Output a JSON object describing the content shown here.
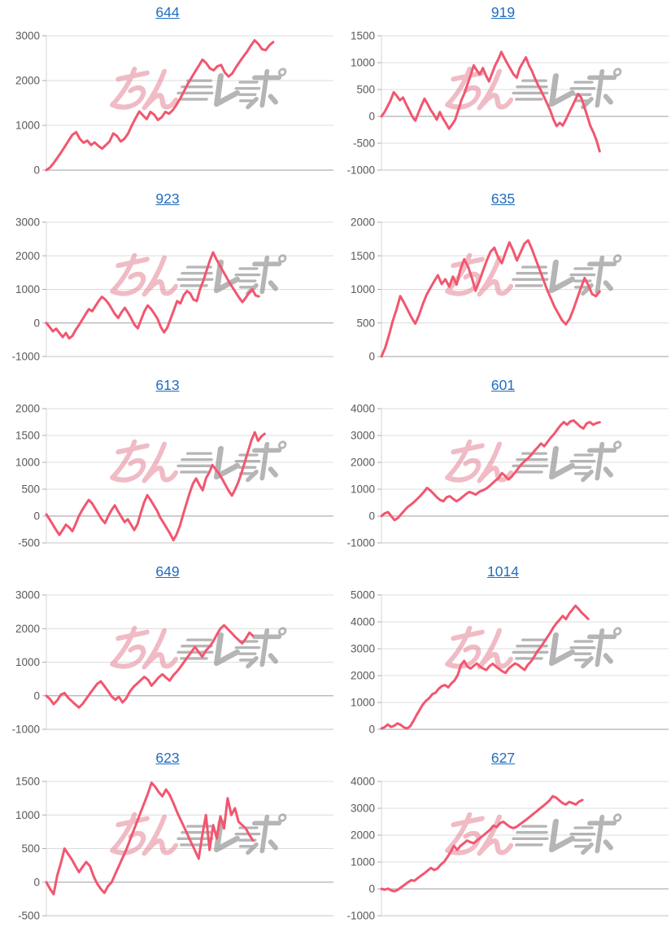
{
  "styles": {
    "series_color": "#f2566f",
    "title_link_color": "#1f6dc1",
    "grid_color": "#dcdcdc",
    "zero_line_color": "#b0b0b0",
    "bottom_line_color": "#c6c6c6",
    "axis_line_color": "#d4d4d4",
    "tick_color": "#ababab",
    "axis_label_color": "#595959",
    "watermark_pink": "#e78fa0",
    "watermark_gray": "#8f8f8f"
  },
  "watermark": {
    "text": "みんレポ",
    "part_pink": "みん",
    "part_gray": "レポ"
  },
  "chart_data": [
    {
      "type": "line",
      "title": "644",
      "ylim": [
        0,
        3000
      ],
      "ytick_step": 1000,
      "yticks": [
        0,
        1000,
        2000,
        3000
      ],
      "x_span_frac": 0.79,
      "values": [
        0,
        60,
        160,
        280,
        400,
        530,
        660,
        790,
        850,
        700,
        610,
        660,
        560,
        620,
        540,
        480,
        560,
        640,
        820,
        760,
        640,
        700,
        820,
        1000,
        1160,
        1310,
        1220,
        1140,
        1300,
        1240,
        1120,
        1180,
        1300,
        1260,
        1340,
        1460,
        1600,
        1760,
        1920,
        2060,
        2200,
        2330,
        2470,
        2390,
        2270,
        2230,
        2320,
        2350,
        2180,
        2090,
        2160,
        2300,
        2420,
        2540,
        2650,
        2780,
        2900,
        2820,
        2700,
        2680,
        2790,
        2860
      ]
    },
    {
      "type": "line",
      "title": "919",
      "ylim": [
        -1000,
        1500
      ],
      "ytick_step": 500,
      "yticks": [
        -1000,
        -500,
        0,
        500,
        1000,
        1500
      ],
      "x_span_frac": 0.76,
      "values": [
        0,
        80,
        190,
        300,
        450,
        380,
        300,
        350,
        230,
        120,
        0,
        -80,
        60,
        200,
        330,
        230,
        120,
        40,
        -60,
        80,
        -40,
        -130,
        -230,
        -150,
        -60,
        120,
        300,
        430,
        600,
        760,
        950,
        860,
        780,
        900,
        760,
        650,
        800,
        950,
        1060,
        1200,
        1090,
        980,
        880,
        780,
        720,
        900,
        1000,
        1100,
        950,
        840,
        700,
        580,
        470,
        350,
        230,
        100,
        -60,
        -180,
        -120,
        -170,
        -60,
        60,
        180,
        300,
        420,
        350,
        180,
        0,
        -180,
        -300,
        -450,
        -650
      ]
    },
    {
      "type": "line",
      "title": "923",
      "ylim": [
        -1000,
        3000
      ],
      "ytick_step": 1000,
      "yticks": [
        -1000,
        0,
        1000,
        2000,
        3000
      ],
      "x_span_frac": 0.74,
      "values": [
        0,
        -120,
        -250,
        -170,
        -300,
        -420,
        -300,
        -460,
        -380,
        -200,
        -60,
        100,
        260,
        410,
        350,
        500,
        650,
        780,
        700,
        580,
        420,
        260,
        150,
        320,
        450,
        300,
        130,
        -60,
        -160,
        100,
        350,
        520,
        420,
        280,
        130,
        -120,
        -280,
        -140,
        120,
        380,
        650,
        580,
        820,
        950,
        880,
        700,
        650,
        1000,
        1250,
        1550,
        1850,
        2100,
        1900,
        1720,
        1550,
        1380,
        1200,
        1050,
        900,
        750,
        620,
        750,
        900,
        1000,
        820,
        790
      ]
    },
    {
      "type": "line",
      "title": "635",
      "ylim": [
        0,
        2000
      ],
      "ytick_step": 500,
      "yticks": [
        0,
        500,
        1000,
        1500,
        2000
      ],
      "x_span_frac": 0.76,
      "values": [
        0,
        130,
        320,
        530,
        700,
        900,
        800,
        690,
        580,
        490,
        620,
        780,
        920,
        1020,
        1120,
        1210,
        1080,
        1150,
        1040,
        1190,
        1070,
        1300,
        1450,
        1340,
        1180,
        980,
        1120,
        1280,
        1430,
        1560,
        1620,
        1480,
        1390,
        1550,
        1700,
        1580,
        1430,
        1550,
        1680,
        1730,
        1600,
        1450,
        1300,
        1150,
        1000,
        870,
        740,
        640,
        540,
        480,
        560,
        700,
        860,
        1020,
        1170,
        1060,
        930,
        900,
        970
      ]
    },
    {
      "type": "line",
      "title": "613",
      "ylim": [
        -500,
        2000
      ],
      "ytick_step": 500,
      "yticks": [
        -500,
        0,
        500,
        1000,
        1500,
        2000
      ],
      "x_span_frac": 0.76,
      "values": [
        30,
        -60,
        -160,
        -260,
        -350,
        -260,
        -160,
        -210,
        -280,
        -150,
        0,
        110,
        210,
        300,
        240,
        140,
        40,
        -60,
        -130,
        0,
        110,
        200,
        90,
        -10,
        -110,
        -60,
        -160,
        -260,
        -150,
        60,
        250,
        390,
        300,
        200,
        100,
        -30,
        -130,
        -230,
        -330,
        -450,
        -340,
        -180,
        30,
        230,
        430,
        600,
        700,
        580,
        480,
        700,
        810,
        950,
        870,
        790,
        690,
        580,
        470,
        380,
        500,
        640,
        820,
        1020,
        1220,
        1420,
        1560,
        1400,
        1480,
        1530
      ]
    },
    {
      "type": "line",
      "title": "601",
      "ylim": [
        -1000,
        4000
      ],
      "ytick_step": 1000,
      "yticks": [
        -1000,
        0,
        1000,
        2000,
        3000,
        4000
      ],
      "x_span_frac": 0.76,
      "values": [
        0,
        100,
        150,
        0,
        -150,
        -80,
        60,
        200,
        330,
        420,
        520,
        640,
        760,
        900,
        1050,
        950,
        830,
        700,
        600,
        550,
        700,
        740,
        640,
        550,
        620,
        720,
        820,
        900,
        850,
        800,
        900,
        950,
        1010,
        1100,
        1210,
        1320,
        1420,
        1600,
        1490,
        1360,
        1470,
        1620,
        1780,
        1930,
        2050,
        2150,
        2280,
        2430,
        2560,
        2700,
        2600,
        2760,
        2920,
        3050,
        3220,
        3380,
        3500,
        3400,
        3520,
        3560,
        3450,
        3330,
        3260,
        3450,
        3500,
        3400,
        3460,
        3490
      ]
    },
    {
      "type": "line",
      "title": "649",
      "ylim": [
        -1000,
        3000
      ],
      "ytick_step": 1000,
      "yticks": [
        -1000,
        0,
        1000,
        2000,
        3000
      ],
      "x_span_frac": 0.72,
      "values": [
        0,
        -100,
        -250,
        -140,
        30,
        80,
        -60,
        -160,
        -260,
        -350,
        -240,
        -90,
        60,
        210,
        350,
        430,
        290,
        140,
        -20,
        -120,
        -30,
        -200,
        -80,
        120,
        260,
        360,
        460,
        560,
        480,
        300,
        420,
        550,
        640,
        540,
        450,
        610,
        720,
        860,
        1010,
        1160,
        1310,
        1450,
        1300,
        1160,
        1350,
        1460,
        1620,
        1820,
        2000,
        2100,
        1990,
        1880,
        1760,
        1660,
        1560,
        1700,
        1880,
        1780
      ]
    },
    {
      "type": "line",
      "title": "1014",
      "ylim": [
        0,
        5000
      ],
      "ytick_step": 1000,
      "yticks": [
        0,
        1000,
        2000,
        3000,
        4000,
        5000
      ],
      "x_span_frac": 0.72,
      "values": [
        30,
        80,
        180,
        90,
        130,
        220,
        170,
        80,
        30,
        110,
        300,
        520,
        720,
        920,
        1060,
        1160,
        1310,
        1360,
        1510,
        1610,
        1650,
        1560,
        1710,
        1820,
        2020,
        2400,
        2550,
        2340,
        2260,
        2360,
        2450,
        2340,
        2260,
        2210,
        2350,
        2440,
        2340,
        2250,
        2160,
        2100,
        2260,
        2360,
        2450,
        2400,
        2300,
        2210,
        2400,
        2520,
        2700,
        2900,
        3050,
        3220,
        3400,
        3580,
        3780,
        3950,
        4080,
        4220,
        4100,
        4300,
        4450,
        4600,
        4480,
        4340,
        4230,
        4110
      ]
    },
    {
      "type": "line",
      "title": "623",
      "ylim": [
        -500,
        1500
      ],
      "ytick_step": 500,
      "yticks": [
        -500,
        0,
        500,
        1000,
        1500
      ],
      "x_span_frac": 0.72,
      "values": [
        0,
        -100,
        -180,
        100,
        280,
        500,
        420,
        340,
        240,
        150,
        230,
        300,
        240,
        90,
        -20,
        -100,
        -160,
        -60,
        0,
        120,
        240,
        360,
        480,
        620,
        760,
        900,
        1040,
        1180,
        1320,
        1480,
        1420,
        1340,
        1280,
        1380,
        1300,
        1180,
        1050,
        930,
        820,
        700,
        580,
        470,
        350,
        700,
        1000,
        480,
        850,
        650,
        980,
        800,
        1250,
        1000,
        1100,
        900,
        850,
        800,
        700,
        620
      ]
    },
    {
      "type": "line",
      "title": "627",
      "ylim": [
        -1000,
        4000
      ],
      "ytick_step": 1000,
      "yticks": [
        -1000,
        0,
        1000,
        2000,
        3000,
        4000
      ],
      "x_span_frac": 0.7,
      "values": [
        0,
        -30,
        10,
        -60,
        -90,
        -30,
        60,
        150,
        240,
        320,
        300,
        400,
        490,
        580,
        680,
        780,
        700,
        760,
        900,
        1010,
        1180,
        1380,
        1600,
        1450,
        1600,
        1700,
        1800,
        1740,
        1700,
        1800,
        1900,
        2000,
        2100,
        2210,
        2350,
        2300,
        2450,
        2500,
        2400,
        2310,
        2260,
        2310,
        2400,
        2490,
        2580,
        2680,
        2780,
        2880,
        2980,
        3080,
        3180,
        3290,
        3450,
        3400,
        3290,
        3190,
        3140,
        3240,
        3190,
        3140,
        3250,
        3310
      ]
    }
  ]
}
